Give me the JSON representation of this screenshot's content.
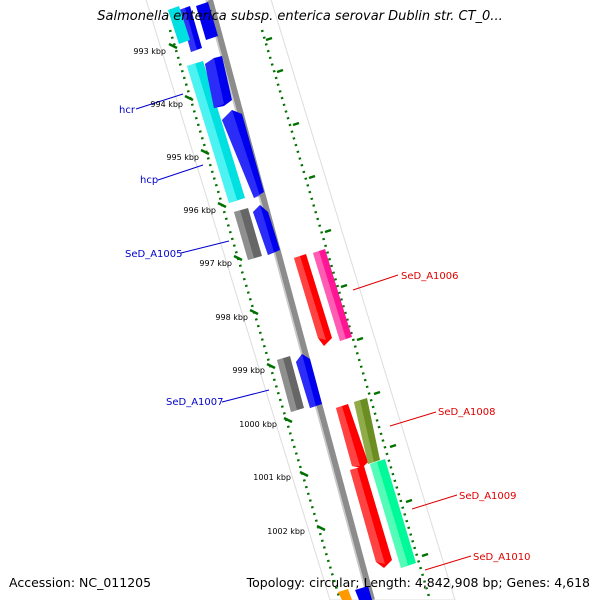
{
  "title": "Salmonella enterica subsp. enterica serovar Dublin str. CT_0...",
  "accession": "Accession: NC_011205",
  "summary": "Topology: circular; Length: 4,842,908 bp; Genes: 4,618",
  "ticks": [
    "993 kbp",
    "994 kbp",
    "995 kbp",
    "996 kbp",
    "997 kbp",
    "998 kbp",
    "999 kbp",
    "1000 kbp",
    "1001 kbp",
    "1002 kbp"
  ],
  "genes": [
    {
      "name": "hcr",
      "strand": "left",
      "color": "#00e0e0"
    },
    {
      "name": "hcp",
      "strand": "left",
      "color": "#00e0e0"
    },
    {
      "name": "SeD_A1005",
      "strand": "left",
      "color": "#666666"
    },
    {
      "name": "SeD_A1006",
      "strand": "right",
      "color": "#ff1493"
    },
    {
      "name": "SeD_A1007",
      "strand": "left",
      "color": "#666666"
    },
    {
      "name": "SeD_A1008",
      "strand": "right",
      "color": "#6b8e23"
    },
    {
      "name": "SeD_A1009",
      "strand": "right",
      "color": "#00fa9a"
    },
    {
      "name": "SeD_A1010",
      "strand": "right",
      "color": "#00fa9a"
    }
  ],
  "colors": {
    "backbone": "#8c8c8c",
    "ticks": "#007000",
    "left_label": "#0000cc",
    "right_label": "#e00000",
    "cds_blue": "#0000ee",
    "cds_red": "#ff0000"
  }
}
